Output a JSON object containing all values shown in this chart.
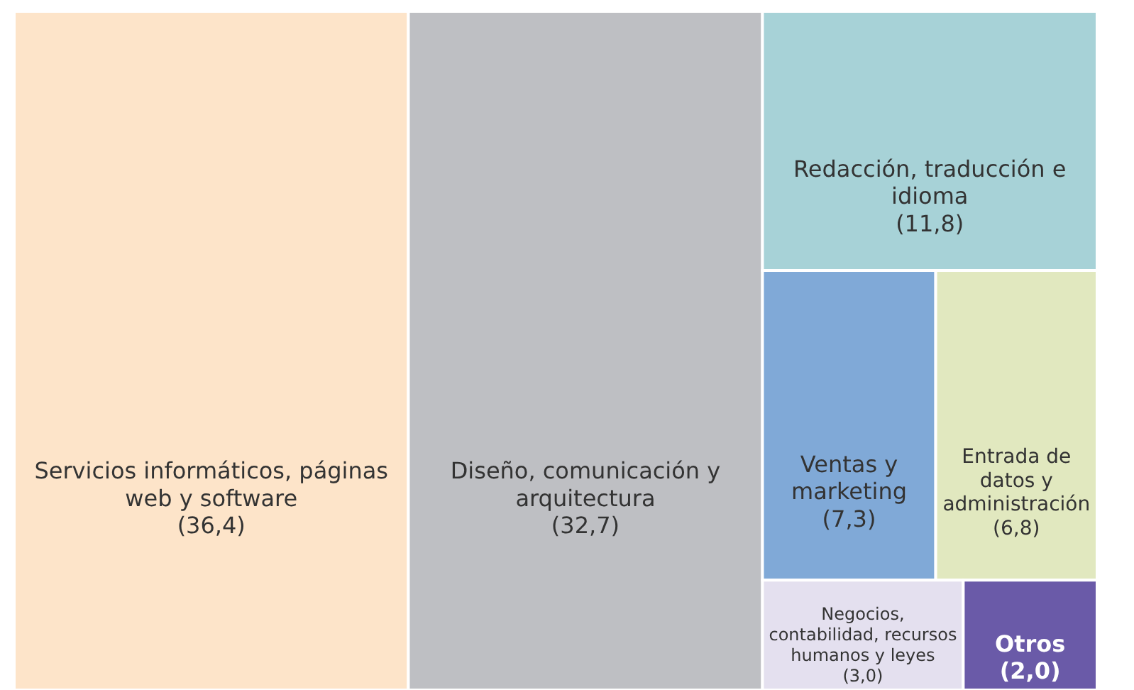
{
  "chart_data": {
    "type": "other",
    "categories": [
      "Servicios informáticos, páginas web y software",
      "Diseño, comunicación y arquitectura",
      "Redacción, traducción e idioma",
      "Ventas y marketing",
      "Entrada de datos y administración",
      "Negocios, contabilidad, recursos humanos y leyes",
      "Otros"
    ],
    "values": [
      36.4,
      32.7,
      11.8,
      7.3,
      6.8,
      3.0,
      2.0
    ],
    "value_labels": [
      "(36,4)",
      "(32,7)",
      "(11,8)",
      "(7,3)",
      "(6,8)",
      "(3,0)",
      "(2,0)"
    ],
    "colors": [
      "#fde4c9",
      "#bebfc3",
      "#a7d2d7",
      "#80a9d7",
      "#e1e8bf",
      "#e4e0ef",
      "#6a5aa8"
    ]
  }
}
